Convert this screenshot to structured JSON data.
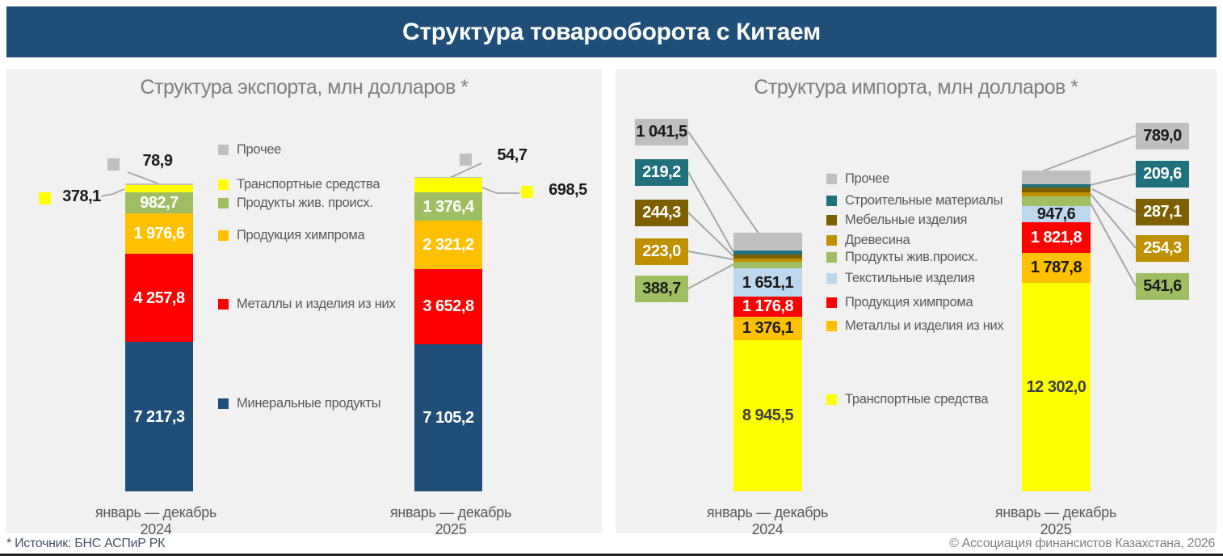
{
  "header": {
    "title": "Структура товарооборота с Китаем"
  },
  "footer": {
    "source_note": "* Источник: БНС АСПиР РК",
    "copyright": "© Ассоциация финансистов Казахстана, 2026"
  },
  "colors": {
    "header_bg": "#1F4E79",
    "panel_bg": "#F1F1F2",
    "leader_line": "#A6A6A6"
  },
  "chart_data": [
    {
      "type": "bar",
      "stacked": true,
      "grid": false,
      "legend_position": "between-bars",
      "title": "Структура экспорта, млн долларов *",
      "categories": [
        "январь — декабрь 2024",
        "январь — декабрь 2025"
      ],
      "value_unit": "млн долларов",
      "series": [
        {
          "name": "Минеральные продукты",
          "color": "#1F4E79",
          "values": [
            7217.3,
            7105.2
          ],
          "labels": [
            "7 217,3",
            "7 105,2"
          ],
          "label_color": "#FFFFFF",
          "label_placement": "inside"
        },
        {
          "name": "Металлы и изделия из них",
          "color": "#FE0000",
          "values": [
            4257.8,
            3652.8
          ],
          "labels": [
            "4 257,8",
            "3 652,8"
          ],
          "label_color": "#FFFFFF",
          "label_placement": "inside"
        },
        {
          "name": "Продукция химпрома",
          "color": "#FFC000",
          "values": [
            1976.6,
            2321.2
          ],
          "labels": [
            "1 976,6",
            "2 321,2"
          ],
          "label_color": "#FFFFFF",
          "label_placement": "inside"
        },
        {
          "name": "Продукты жив. происх.",
          "color": "#9FBE63",
          "values": [
            982.7,
            1376.4
          ],
          "labels": [
            "982,7",
            "1 376,4"
          ],
          "label_color": "#FFFFFF",
          "label_placement": "inside"
        },
        {
          "name": "Транспортные средства",
          "color": "#FFFF00",
          "values": [
            378.1,
            698.5
          ],
          "labels": [
            "378,1",
            "698,5"
          ],
          "label_placement": "outside"
        },
        {
          "name": "Прочее",
          "color": "#BFBFBF",
          "values": [
            78.9,
            54.7
          ],
          "labels": [
            "78,9",
            "54,7"
          ],
          "label_placement": "outside"
        }
      ]
    },
    {
      "type": "bar",
      "stacked": true,
      "grid": false,
      "legend_position": "between-bars",
      "title": "Структура импорта, млн долларов *",
      "categories": [
        "январь — декабрь 2024",
        "январь — декабрь 2025"
      ],
      "value_unit": "млн долларов",
      "series": [
        {
          "name": "Транспортные средства",
          "color": "#FFFF00",
          "values": [
            8945.5,
            12302.0
          ],
          "labels": [
            "8 945,5",
            "12 302,0"
          ],
          "label_color": "#3F3F3F",
          "label_placement": "inside"
        },
        {
          "name": "Металлы и изделия из них",
          "color": "#FFC000",
          "values": [
            1376.1,
            1787.8
          ],
          "labels": [
            "1 376,1",
            "1 787,8"
          ],
          "label_color": "#1A1A1A",
          "label_placement": "inside"
        },
        {
          "name": "Продукция химпрома",
          "color": "#FE0000",
          "values": [
            1176.8,
            1821.8
          ],
          "labels": [
            "1 176,8",
            "1 821,8"
          ],
          "label_color": "#FFFFFF",
          "label_placement": "inside"
        },
        {
          "name": "Текстильные изделия",
          "color": "#BDD7EE",
          "values": [
            1651.1,
            947.6
          ],
          "labels": [
            "1 651,1",
            "947,6"
          ],
          "label_color": "#1A1A1A",
          "label_placement": "inside"
        },
        {
          "name": "Продукты жив.происх.",
          "color": "#9FBE63",
          "values": [
            388.7,
            541.6
          ],
          "labels": [
            "388,7",
            "541,6"
          ],
          "label_placement": "outside"
        },
        {
          "name": "Древесина",
          "color": "#BF9000",
          "values": [
            223.0,
            254.3
          ],
          "labels": [
            "223,0",
            "254,3"
          ],
          "label_placement": "outside"
        },
        {
          "name": "Мебельные изделия",
          "color": "#7F6000",
          "values": [
            244.3,
            287.1
          ],
          "labels": [
            "244,3",
            "287,1"
          ],
          "label_placement": "outside"
        },
        {
          "name": "Строительные материалы",
          "color": "#21707E",
          "values": [
            219.2,
            209.6
          ],
          "labels": [
            "219,2",
            "209,6"
          ],
          "label_placement": "outside"
        },
        {
          "name": "Прочее",
          "color": "#BFBFBF",
          "values": [
            1041.5,
            789.0
          ],
          "labels": [
            "1 041,5",
            "789,0"
          ],
          "label_placement": "outside"
        }
      ]
    }
  ]
}
